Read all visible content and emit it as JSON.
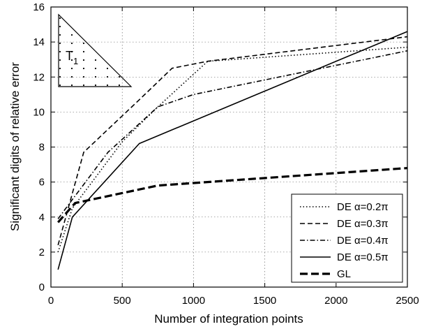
{
  "chart_data": {
    "type": "line",
    "xlabel": "Number of integration points",
    "ylabel": "Significant digits of relative error",
    "xlim": [
      0,
      2500
    ],
    "ylim": [
      0,
      16
    ],
    "xticks": [
      "0",
      "500",
      "1000",
      "1500",
      "2000",
      "2500"
    ],
    "yticks": [
      "0",
      "2",
      "4",
      "6",
      "8",
      "10",
      "12",
      "14",
      "16"
    ],
    "legend_position": "lower-right",
    "grid": true,
    "series": [
      {
        "name": "DE α=0.2π",
        "style": "dotted",
        "x": [
          50,
          150,
          500,
          750,
          1100,
          2500
        ],
        "y": [
          2.0,
          4.5,
          8.3,
          10.3,
          12.9,
          13.7
        ]
      },
      {
        "name": "DE α=0.3π",
        "style": "dashed",
        "x": [
          50,
          230,
          620,
          850,
          1100,
          2500
        ],
        "y": [
          2.4,
          7.7,
          10.7,
          12.5,
          12.9,
          14.3
        ]
      },
      {
        "name": "DE α=0.4π",
        "style": "dashdot",
        "x": [
          50,
          150,
          400,
          750,
          1000,
          2500
        ],
        "y": [
          3.9,
          5.0,
          7.7,
          10.3,
          11.0,
          13.5
        ]
      },
      {
        "name": "DE α=0.5π",
        "style": "solid",
        "x": [
          50,
          150,
          620,
          2500
        ],
        "y": [
          1.0,
          4.0,
          8.2,
          14.6
        ]
      },
      {
        "name": "GL",
        "style": "thick-dashed",
        "x": [
          50,
          170,
          750,
          2500
        ],
        "y": [
          3.7,
          4.8,
          5.8,
          6.8
        ]
      }
    ],
    "inset": {
      "label": "T",
      "subscript": "1"
    }
  }
}
